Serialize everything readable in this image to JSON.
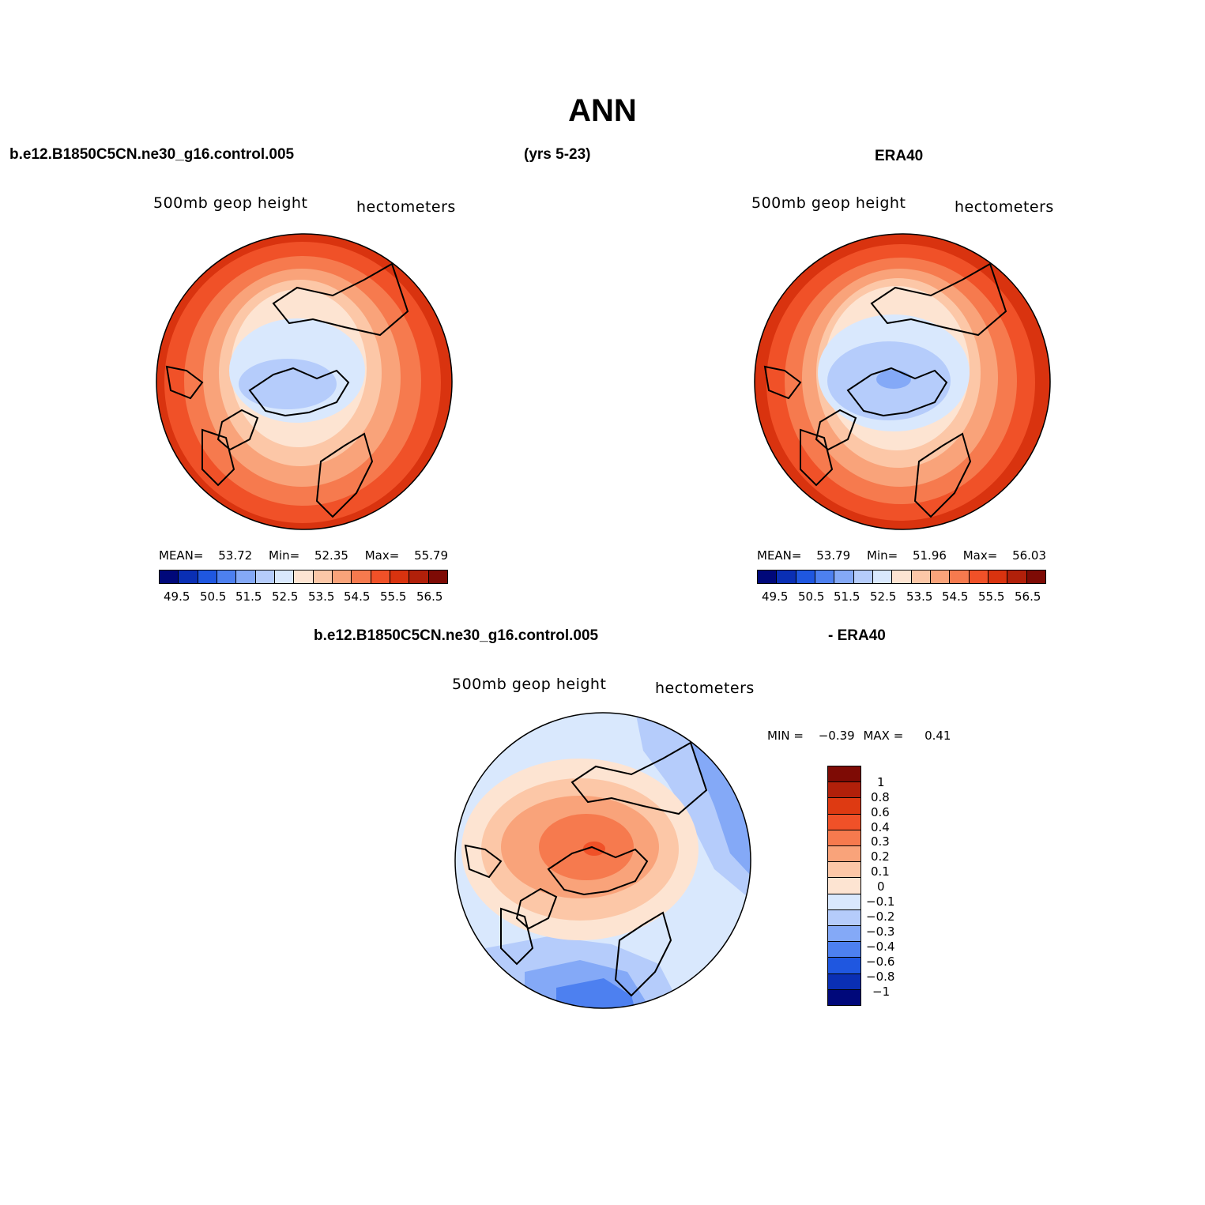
{
  "figure": {
    "title": "ANN",
    "case_name": "b.e12.B1850C5CN.ne30_g16.control.005",
    "years": "(yrs 5-23)",
    "obs_name": "ERA40",
    "diff_case": "b.e12.B1850C5CN.ne30_g16.control.005",
    "diff_obs": "- ERA40"
  },
  "panels": [
    {
      "id": "model",
      "variable": "500mb geop height",
      "units": "hectometers",
      "stats": {
        "mean_label": "MEAN=",
        "mean": "53.72",
        "min_label": "Min=",
        "min": "52.35",
        "max_label": "Max=",
        "max": "55.79"
      },
      "colorbar_labels": [
        "49.5",
        "50.5",
        "51.5",
        "52.5",
        "53.5",
        "54.5",
        "55.5",
        "56.5"
      ]
    },
    {
      "id": "obs",
      "variable": "500mb geop height",
      "units": "hectometers",
      "stats": {
        "mean_label": "MEAN=",
        "mean": "53.79",
        "min_label": "Min=",
        "min": "51.96",
        "max_label": "Max=",
        "max": "56.03"
      },
      "colorbar_labels": [
        "49.5",
        "50.5",
        "51.5",
        "52.5",
        "53.5",
        "54.5",
        "55.5",
        "56.5"
      ]
    },
    {
      "id": "diff",
      "variable": "500mb geop height",
      "units": "hectometers",
      "stats": {
        "min_label": "MIN =",
        "min": "−0.39",
        "max_label": "MAX =",
        "max": "0.41"
      },
      "colorbar_labels": [
        "1",
        "0.8",
        "0.6",
        "0.4",
        "0.3",
        "0.2",
        "0.1",
        "0",
        "−0.1",
        "−0.2",
        "−0.3",
        "−0.4",
        "−0.6",
        "−0.8",
        "−1"
      ]
    }
  ],
  "colors": {
    "field_scale": [
      "#00087a",
      "#0a2fb4",
      "#1f57e0",
      "#4d80f0",
      "#84a9f7",
      "#b5ccfb",
      "#d9e8fd",
      "#fde4d2",
      "#fcc7a7",
      "#f9a37a",
      "#f67a4e",
      "#f05128",
      "#d9330f",
      "#b1200a",
      "#7e0b05"
    ],
    "diff_scale_top_to_bottom": [
      "#7e0b05",
      "#b1200a",
      "#de3a12",
      "#f05128",
      "#f67a4e",
      "#f9a37a",
      "#fcc7a7",
      "#fde4d2",
      "#d9e8fd",
      "#b5ccfb",
      "#84a9f7",
      "#4d80f0",
      "#1f57e0",
      "#0a2fb4",
      "#00087a"
    ]
  }
}
